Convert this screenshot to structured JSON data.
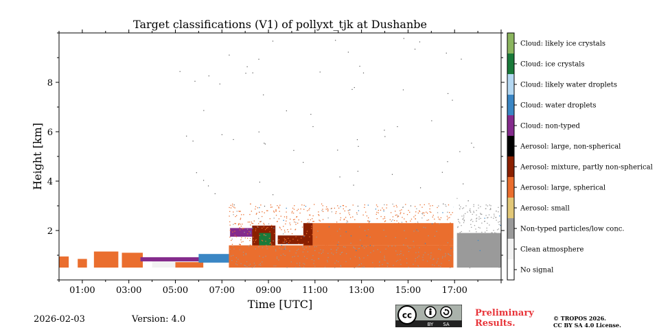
{
  "chart_data": {
    "type": "heatmap",
    "title": "Target classifications (V1) of pollyxt_tjk at Dushanbe",
    "xlabel": "Time [UTC]",
    "ylabel": "Height [km]",
    "xlim": [
      0.0,
      19.0
    ],
    "ylim": [
      0.0,
      10.0
    ],
    "x_ticks": [
      1,
      3,
      5,
      7,
      9,
      11,
      13,
      15,
      17
    ],
    "x_tick_labels": [
      "01:00",
      "03:00",
      "05:00",
      "07:00",
      "09:00",
      "11:00",
      "13:00",
      "15:00",
      "17:00"
    ],
    "y_ticks": [
      2,
      4,
      6,
      8
    ],
    "y_tick_labels": [
      "2",
      "4",
      "6",
      "8"
    ],
    "colorbar": {
      "categories": [
        {
          "label": "Cloud: likely ice crystals",
          "color": "#8bb55f"
        },
        {
          "label": "Cloud: ice crystals",
          "color": "#1a7a3a"
        },
        {
          "label": "Cloud: likely water droplets",
          "color": "#b4d8f2"
        },
        {
          "label": "Cloud: water droplets",
          "color": "#3a86c4"
        },
        {
          "label": "Cloud: non-typed",
          "color": "#842b8c"
        },
        {
          "label": "Aerosol: large, non-spherical",
          "color": "#000000"
        },
        {
          "label": "Aerosol: mixture, partly non-spherical",
          "color": "#8a2000"
        },
        {
          "label": "Aerosol: large, spherical",
          "color": "#ea6e2e"
        },
        {
          "label": "Aerosol: small",
          "color": "#e2c878"
        },
        {
          "label": "Non-typed particles/low conc.",
          "color": "#9a9a9a"
        },
        {
          "label": "Clean atmosphere",
          "color": "#f2f2f2"
        },
        {
          "label": "No signal",
          "color": "#ffffff"
        }
      ]
    },
    "layers": [
      {
        "class": "Aerosol: large, spherical",
        "t_start": 0.0,
        "t_end": 0.42,
        "h_bottom": 0.5,
        "h_top": 0.95
      },
      {
        "class": "Aerosol: large, spherical",
        "t_start": 0.8,
        "t_end": 1.2,
        "h_bottom": 0.5,
        "h_top": 0.85
      },
      {
        "class": "Aerosol: large, spherical",
        "t_start": 1.5,
        "t_end": 2.55,
        "h_bottom": 0.5,
        "h_top": 1.15
      },
      {
        "class": "Aerosol: large, spherical",
        "t_start": 2.7,
        "t_end": 3.6,
        "h_bottom": 0.5,
        "h_top": 1.1
      },
      {
        "class": "Cloud: non-typed",
        "t_start": 3.5,
        "t_end": 6.4,
        "h_bottom": 0.75,
        "h_top": 0.92
      },
      {
        "class": "Clean atmosphere",
        "t_start": 4.0,
        "t_end": 6.2,
        "h_bottom": 0.5,
        "h_top": 0.75
      },
      {
        "class": "Aerosol: large, spherical",
        "t_start": 5.0,
        "t_end": 6.2,
        "h_bottom": 0.5,
        "h_top": 0.72
      },
      {
        "class": "Cloud: water droplets",
        "t_start": 6.0,
        "t_end": 7.4,
        "h_bottom": 0.7,
        "h_top": 1.05
      },
      {
        "class": "Cloud: non-typed",
        "t_start": 7.35,
        "t_end": 8.7,
        "h_bottom": 1.75,
        "h_top": 2.1
      },
      {
        "class": "Aerosol: mixture, partly non-spherical",
        "t_start": 8.3,
        "t_end": 9.3,
        "h_bottom": 1.2,
        "h_top": 2.2
      },
      {
        "class": "Cloud: ice crystals",
        "t_start": 8.6,
        "t_end": 9.1,
        "h_bottom": 1.3,
        "h_top": 1.9
      },
      {
        "class": "Aerosol: mixture, partly non-spherical",
        "t_start": 9.4,
        "t_end": 10.6,
        "h_bottom": 1.45,
        "h_top": 1.8
      },
      {
        "class": "Aerosol: mixture, partly non-spherical",
        "t_start": 10.5,
        "t_end": 10.9,
        "h_bottom": 1.3,
        "h_top": 2.3
      },
      {
        "class": "Aerosol: large, spherical",
        "t_start": 7.3,
        "t_end": 16.95,
        "h_bottom": 0.5,
        "h_top": 1.4
      },
      {
        "class": "Aerosol: large, spherical",
        "t_start": 10.9,
        "t_end": 16.95,
        "h_bottom": 1.4,
        "h_top": 2.3
      },
      {
        "class": "Non-typed particles/low conc.",
        "t_start": 17.1,
        "t_end": 19.0,
        "h_bottom": 0.5,
        "h_top": 1.9
      }
    ],
    "data_gaps": [
      [
        0.42,
        0.8
      ],
      [
        2.55,
        2.7
      ],
      [
        16.95,
        17.1
      ]
    ]
  },
  "footer": {
    "date": "2026-02-03",
    "version": "Version: 4.0",
    "preliminary_line1": "Preliminary",
    "preliminary_line2": "Results.",
    "copyright_line1": "© TROPOS 2026.",
    "copyright_line2": "CC BY SA 4.0 License.",
    "license_badge": {
      "cc": "cc",
      "by": "BY",
      "sa": "SA"
    }
  },
  "icons": {
    "license_icon": "creative-commons-by-sa-icon"
  }
}
